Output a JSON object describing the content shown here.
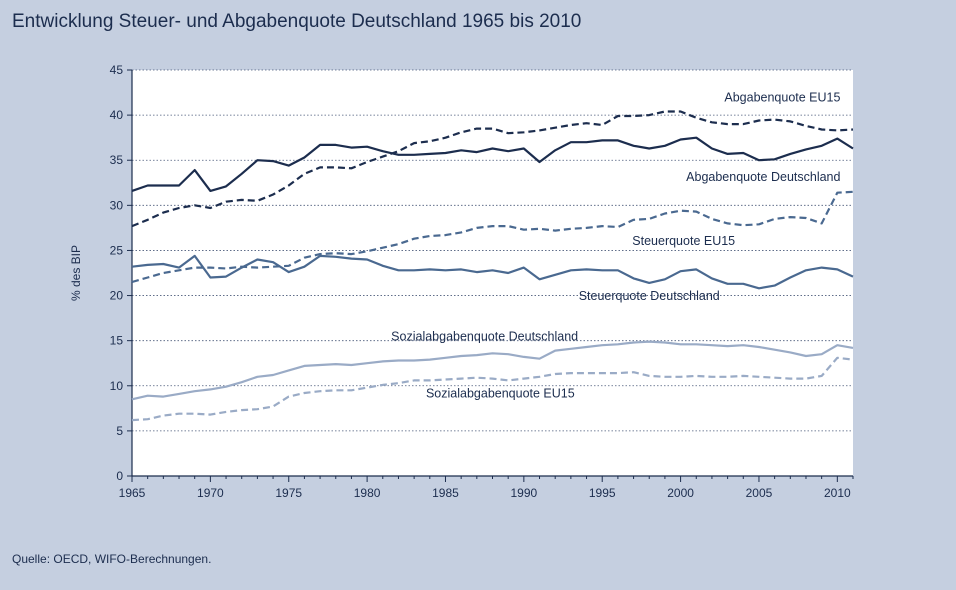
{
  "chart_data": {
    "type": "line",
    "title": "Entwicklung Steuer- und Abgabenquote Deutschland 1965 bis 2010",
    "xlabel": "",
    "ylabel": "% des BIP",
    "xlim": [
      1965,
      2011
    ],
    "ylim": [
      0,
      45
    ],
    "xticks": [
      1965,
      1970,
      1975,
      1980,
      1985,
      1990,
      1995,
      2000,
      2005,
      2010
    ],
    "yticks": [
      0,
      5,
      10,
      15,
      20,
      25,
      30,
      35,
      40,
      45
    ],
    "grid": true,
    "legend": "inline labels",
    "x": [
      1965,
      1966,
      1967,
      1968,
      1969,
      1970,
      1971,
      1972,
      1973,
      1974,
      1975,
      1976,
      1977,
      1978,
      1979,
      1980,
      1981,
      1982,
      1983,
      1984,
      1985,
      1986,
      1987,
      1988,
      1989,
      1990,
      1991,
      1992,
      1993,
      1994,
      1995,
      1996,
      1997,
      1998,
      1999,
      2000,
      2001,
      2002,
      2003,
      2004,
      2005,
      2006,
      2007,
      2008,
      2009,
      2010,
      2011
    ],
    "series": [
      {
        "name": "Abgabenquote EU15",
        "color": "#1c2d4e",
        "dash": true,
        "width": 2.2,
        "values": [
          27.7,
          28.4,
          29.2,
          29.7,
          30.0,
          29.7,
          30.4,
          30.6,
          30.5,
          31.2,
          32.2,
          33.5,
          34.2,
          34.2,
          34.1,
          34.8,
          35.4,
          36.0,
          36.9,
          37.1,
          37.5,
          38.1,
          38.5,
          38.5,
          38.0,
          38.1,
          38.3,
          38.6,
          38.9,
          39.1,
          38.9,
          39.9,
          39.9,
          40.0,
          40.4,
          40.4,
          39.7,
          39.2,
          39.0,
          39.0,
          39.4,
          39.5,
          39.3,
          38.8,
          38.4,
          38.3,
          38.4
        ]
      },
      {
        "name": "Abgabenquote Deutschland",
        "color": "#1c2d4e",
        "dash": false,
        "width": 2.2,
        "values": [
          31.6,
          32.2,
          32.2,
          32.2,
          33.9,
          31.6,
          32.1,
          33.5,
          35.0,
          34.9,
          34.4,
          35.3,
          36.7,
          36.7,
          36.4,
          36.5,
          36.0,
          35.6,
          35.6,
          35.7,
          35.8,
          36.1,
          35.9,
          36.3,
          36.0,
          36.3,
          34.8,
          36.1,
          37.0,
          37.0,
          37.2,
          37.2,
          36.6,
          36.3,
          36.6,
          37.3,
          37.5,
          36.3,
          35.7,
          35.8,
          35.0,
          35.1,
          35.7,
          36.2,
          36.6,
          37.4,
          36.3
        ]
      },
      {
        "name": "Steuerquote EU15",
        "color": "#4a6990",
        "dash": true,
        "width": 2.2,
        "values": [
          21.5,
          22.0,
          22.5,
          22.8,
          23.1,
          23.1,
          23.0,
          23.2,
          23.1,
          23.2,
          23.3,
          24.2,
          24.6,
          24.7,
          24.6,
          24.9,
          25.3,
          25.7,
          26.3,
          26.6,
          26.7,
          27.0,
          27.5,
          27.7,
          27.7,
          27.3,
          27.4,
          27.2,
          27.4,
          27.5,
          27.7,
          27.6,
          28.4,
          28.5,
          29.1,
          29.4,
          29.3,
          28.5,
          28.0,
          27.8,
          27.9,
          28.5,
          28.7,
          28.6,
          28.0,
          31.4,
          31.5
        ]
      },
      {
        "name": "Steuerquote Deutschland",
        "color": "#4a6990",
        "dash": false,
        "width": 2.2,
        "values": [
          23.2,
          23.4,
          23.5,
          23.1,
          24.4,
          22.0,
          22.1,
          23.1,
          24.0,
          23.7,
          22.6,
          23.2,
          24.4,
          24.3,
          24.1,
          24.0,
          23.3,
          22.8,
          22.8,
          22.9,
          22.8,
          22.9,
          22.6,
          22.8,
          22.5,
          23.1,
          21.8,
          22.3,
          22.8,
          22.9,
          22.8,
          22.8,
          21.9,
          21.4,
          21.8,
          22.7,
          22.9,
          21.9,
          21.3,
          21.3,
          20.8,
          21.1,
          22.0,
          22.8,
          23.1,
          22.9,
          22.1
        ]
      },
      {
        "name": "Sozialabgabenquote Deutschland",
        "color": "#9aabc6",
        "dash": false,
        "width": 2.2,
        "values": [
          8.5,
          8.9,
          8.8,
          9.1,
          9.4,
          9.6,
          9.9,
          10.4,
          11.0,
          11.2,
          11.7,
          12.2,
          12.3,
          12.4,
          12.3,
          12.5,
          12.7,
          12.8,
          12.8,
          12.9,
          13.1,
          13.3,
          13.4,
          13.6,
          13.5,
          13.2,
          13.0,
          13.9,
          14.1,
          14.3,
          14.5,
          14.6,
          14.8,
          14.9,
          14.8,
          14.6,
          14.6,
          14.5,
          14.4,
          14.5,
          14.3,
          14.0,
          13.7,
          13.3,
          13.5,
          14.5,
          14.2
        ]
      },
      {
        "name": "Sozialabgabenquote EU15",
        "color": "#9aabc6",
        "dash": true,
        "width": 2.2,
        "values": [
          6.2,
          6.3,
          6.7,
          6.9,
          6.9,
          6.8,
          7.1,
          7.3,
          7.4,
          7.7,
          8.8,
          9.2,
          9.4,
          9.5,
          9.5,
          9.8,
          10.1,
          10.3,
          10.6,
          10.6,
          10.7,
          10.8,
          10.9,
          10.8,
          10.6,
          10.8,
          11.0,
          11.3,
          11.4,
          11.4,
          11.4,
          11.4,
          11.5,
          11.1,
          11.0,
          11.0,
          11.1,
          11.0,
          11.0,
          11.1,
          11.0,
          10.9,
          10.8,
          10.8,
          11.1,
          13.1,
          12.9
        ]
      }
    ],
    "series_labels": [
      {
        "text": "Abgabenquote EU15",
        "x": 2010.2,
        "y": 41.5
      },
      {
        "text": "Abgabenquote Deutschland",
        "x": 2010.2,
        "y": 32.7
      },
      {
        "text": "Steuerquote EU15",
        "x": 2000.2,
        "y": 25.6
      },
      {
        "text": "Steuerquote Deutschland",
        "x": 1998.0,
        "y": 19.5
      },
      {
        "text": "Sozialabgabenquote Deutschland",
        "x": 1987.5,
        "y": 15.0
      },
      {
        "text": "Sozialabgabenquote EU15",
        "x": 1988.5,
        "y": 8.7
      }
    ]
  },
  "source": "Quelle: OECD, WIFO-Berechnungen."
}
